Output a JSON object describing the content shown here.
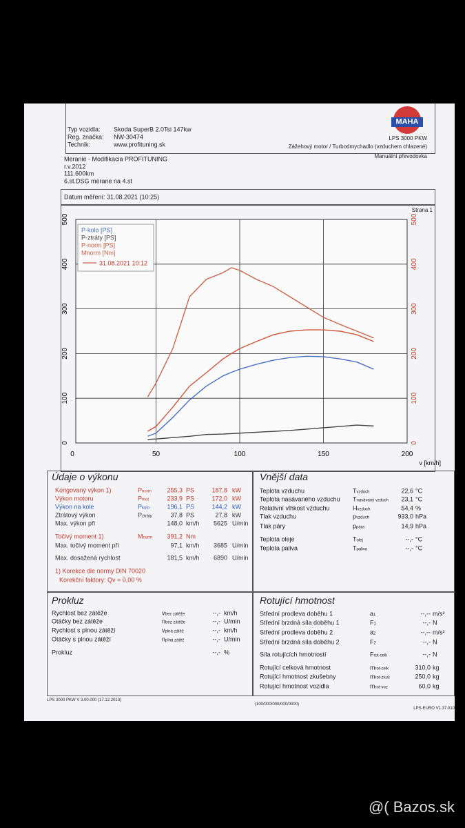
{
  "header": {
    "fields": [
      {
        "label": "Typ vozidla:",
        "value": "Skoda SuperB 2.0Tsi 147kw"
      },
      {
        "label": "Reg. značka:",
        "value": "NW-30474"
      },
      {
        "label": "Technik:",
        "value": "www.profituning.sk"
      }
    ],
    "logo": "MAHA",
    "model": "LPS 3000 PKW",
    "engine": "Zážehový motor / Turbodmychadlo (vzduchem chlazené)",
    "gearbox": "Manuální převodovka"
  },
  "notes": [
    "Meranie - Modifikacia PROFITUNING",
    "r.v.2012",
    "111.600km",
    "6.st.DSG merane na 4.st"
  ],
  "date": "Datum měření: 31.08.2021 (10:25)",
  "page": "Strana 1",
  "chart_data": {
    "type": "line",
    "x_label": "v [km/h]",
    "legend_note": "31.08.2021 10:12",
    "x": [
      45,
      50,
      60,
      70,
      80,
      90,
      95,
      100,
      110,
      120,
      130,
      140,
      150,
      160,
      170,
      180
    ],
    "series": [
      {
        "name": "P-kolo [PS]",
        "color": "#4a6fc4",
        "values": [
          15,
          22,
          57,
          96,
          127,
          150,
          158,
          165,
          176,
          185,
          191,
          194,
          193,
          188,
          181,
          165
        ]
      },
      {
        "name": "P-ztráty [PS]",
        "color": "#444444",
        "values": [
          8,
          9,
          12,
          15,
          19,
          20,
          21,
          22,
          24,
          26,
          28,
          31,
          34,
          37,
          40,
          38
        ]
      },
      {
        "name": "P-norm [PS]",
        "color": "#d0553a",
        "values": [
          26,
          37,
          80,
          127,
          157,
          188,
          200,
          211,
          227,
          242,
          250,
          253,
          253,
          250,
          242,
          227
        ]
      },
      {
        "name": "Mnorm [Nm]",
        "color": "#c9644a",
        "values": [
          103,
          134,
          211,
          327,
          366,
          381,
          392,
          386,
          366,
          350,
          327,
          304,
          281,
          265,
          250,
          235
        ]
      }
    ],
    "xlim": [
      0,
      200
    ],
    "xticks": [
      0,
      50,
      100,
      150,
      200
    ],
    "ylim": [
      0,
      500
    ],
    "yticks": [
      0,
      100,
      200,
      300,
      400,
      500
    ],
    "grid": true
  },
  "power": {
    "title": "Údaje o výkonu",
    "rows": [
      {
        "label": "Korigovaný výkon 1)",
        "sym": "P",
        "sub": "norm",
        "v1": "255,3",
        "u1": "PS",
        "v2": "187,8",
        "u2": "kW",
        "color": "#c0392b"
      },
      {
        "label": "Výkon motoru",
        "sym": "P",
        "sub": "mot",
        "v1": "233,9",
        "u1": "PS",
        "v2": "172,0",
        "u2": "kW",
        "color": "#c0392b"
      },
      {
        "label": "Výkon na kole",
        "sym": "P",
        "sub": "kolo",
        "v1": "196,1",
        "u1": "PS",
        "v2": "144,2",
        "u2": "kW",
        "color": "#2e5cb8"
      },
      {
        "label": "Ztrátový výkon",
        "sym": "P",
        "sub": "ztráty",
        "v1": "37,8",
        "u1": "PS",
        "v2": "27,8",
        "u2": "kW",
        "color": "#333333"
      },
      {
        "label": "Max. výkon při",
        "v1": "148,0",
        "u1": "km/h",
        "v2": "5625",
        "u2": "U/min",
        "color": "#333333"
      },
      {
        "label": "Točivý moment 1)",
        "sym": "M",
        "sub": "norm",
        "v1": "391,2",
        "u1": "Nm",
        "color": "#c0392b"
      },
      {
        "label": "Max. točivý moment při",
        "v1": "97,1",
        "u1": "km/h",
        "v2": "3685",
        "u2": "U/min",
        "color": "#333333"
      },
      {
        "label": "Max. dosažená rychlost",
        "v1": "181,5",
        "u1": "km/h",
        "v2": "6890",
        "u2": "U/min",
        "color": "#333333"
      }
    ],
    "footnotes": [
      "1) Korekce dle normy DIN 70020",
      "Korekční faktory: Qv = 0,00 %"
    ]
  },
  "ambient": {
    "title": "Vnější data",
    "rows": [
      {
        "label": "Teplota vzduchu",
        "sym": "T",
        "sub": "vzduch",
        "v1": "22,6",
        "u1": "°C"
      },
      {
        "label": "Teplota nasávaného vzduchu",
        "sym": "T",
        "sub": "nasávaný vzduch",
        "v1": "23,1",
        "u1": "°C"
      },
      {
        "label": "Relativní vlhkost vzduchu",
        "sym": "H",
        "sub": "vzduch",
        "v1": "54,4",
        "u1": "%"
      },
      {
        "label": "Tlak vzduchu",
        "sym": "p",
        "sub": "vzduch",
        "v1": "933,0",
        "u1": "hPa"
      },
      {
        "label": "Tlak páry",
        "sym": "p",
        "sub": "pára",
        "v1": "14,9",
        "u1": "hPa"
      },
      {
        "label": "Teplota oleje",
        "sym": "T",
        "sub": "olej",
        "v1": "--,-",
        "u1": "°C"
      },
      {
        "label": "Teplota paliva",
        "sym": "T",
        "sub": "palivo",
        "v1": "--,-",
        "u1": "°C"
      }
    ]
  },
  "slip": {
    "title": "Prokluz",
    "rows": [
      {
        "label": "Rychlost bez zátěže",
        "sym": "v",
        "sub": "bez zátěže",
        "v1": "--,-",
        "u1": "km/h"
      },
      {
        "label": "Otáčky bez zátěže",
        "sym": "n",
        "sub": "bez zátěže",
        "v1": "--,-",
        "u1": "U/min"
      },
      {
        "label": "Rychlost s plnou zátěží",
        "sym": "v",
        "sub": "plná zátěž",
        "v1": "--,-",
        "u1": "km/h"
      },
      {
        "label": "Otáčky s plnou zátěží",
        "sym": "n",
        "sub": "plná zátěž",
        "v1": "--,-",
        "u1": "U/min"
      },
      {
        "label": "Prokluz",
        "v1": "--,-",
        "u1": "%"
      }
    ]
  },
  "mass": {
    "title": "Rotující hmotnost",
    "rows": [
      {
        "label": "Střední prodleva doběhu 1",
        "sym": "a",
        "sub": "1",
        "v1": "--,--",
        "u1": "m/s²"
      },
      {
        "label": "Střední brzdná síla doběhu 1",
        "sym": "F",
        "sub": "1",
        "v1": "--,-",
        "u1": "N"
      },
      {
        "label": "Střední prodleva doběhu 2",
        "sym": "a",
        "sub": "2",
        "v1": "--,--",
        "u1": "m/s²"
      },
      {
        "label": "Střední brzdná síla doběhu 2",
        "sym": "F",
        "sub": "2",
        "v1": "--,-",
        "u1": "N"
      },
      {
        "label": "Síla rotujících hmotností",
        "sym": "F",
        "sub": "rot-celk",
        "v1": "--,-",
        "u1": "N"
      },
      {
        "label": "Rotující celková hmotnost",
        "sym": "m",
        "sub": "rot-celk",
        "v1": "310,0",
        "u1": "kg"
      },
      {
        "label": "Rotující hmotnost zkušebny",
        "sym": "m",
        "sub": "rot-zkuš",
        "v1": "250,0",
        "u1": "kg"
      },
      {
        "label": "Rotující hmotnost vozidla",
        "sym": "m",
        "sub": "rot-voz",
        "v1": "60,0",
        "u1": "kg"
      }
    ]
  },
  "footer": {
    "left": "LPS 3000 PKW V 3.00.000 (17.12.2013)",
    "center": "(100/000/000/000/0000)",
    "right": "LPS-EURO V1.37.010"
  },
  "watermark": "@( Bazos.sk"
}
